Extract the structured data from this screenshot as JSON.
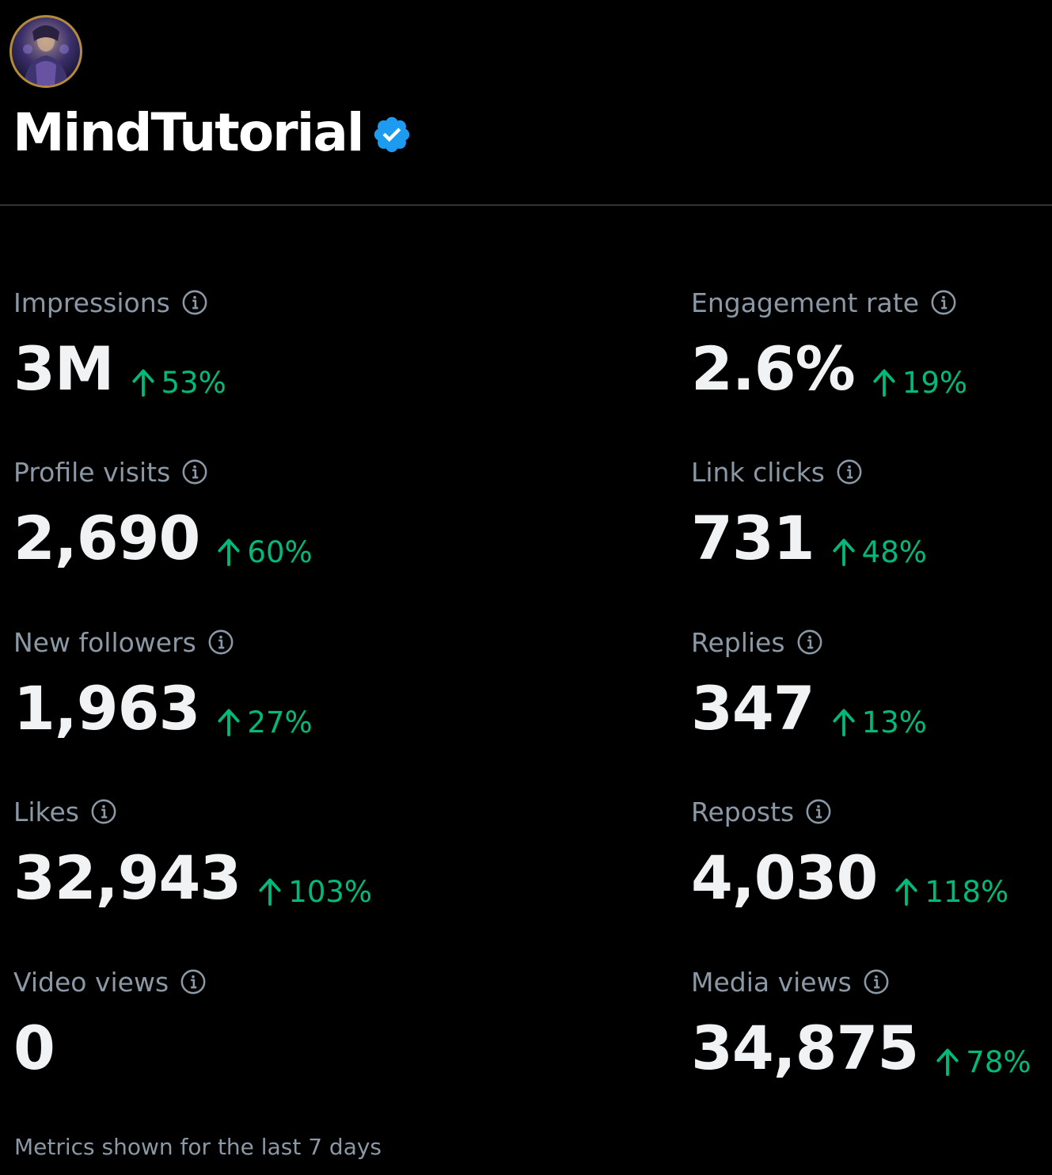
{
  "profile": {
    "display_name": "MindTutorial",
    "verified": true,
    "verified_color": "#1d9bf0"
  },
  "metrics": [
    {
      "label": "Impressions",
      "value": "3M",
      "delta": "53%",
      "direction": "up"
    },
    {
      "label": "Engagement rate",
      "value": "2.6%",
      "delta": "19%",
      "direction": "up"
    },
    {
      "label": "Profile visits",
      "value": "2,690",
      "delta": "60%",
      "direction": "up"
    },
    {
      "label": "Link clicks",
      "value": "731",
      "delta": "48%",
      "direction": "up"
    },
    {
      "label": "New followers",
      "value": "1,963",
      "delta": "27%",
      "direction": "up"
    },
    {
      "label": "Replies",
      "value": "347",
      "delta": "13%",
      "direction": "up"
    },
    {
      "label": "Likes",
      "value": "32,943",
      "delta": "103%",
      "direction": "up"
    },
    {
      "label": "Reposts",
      "value": "4,030",
      "delta": "118%",
      "direction": "up"
    },
    {
      "label": "Video views",
      "value": "0",
      "delta": "",
      "direction": "none"
    },
    {
      "label": "Media views",
      "value": "34,875",
      "delta": "78%",
      "direction": "up"
    }
  ],
  "footer": {
    "note": "Metrics shown for the last 7 days"
  },
  "colors": {
    "background": "#000000",
    "positive": "#00ba7c",
    "muted_text": "#8b98a5",
    "primary_text": "#f0f2f3"
  },
  "icons": {
    "info": "info-circle-icon",
    "up": "arrow-up-icon",
    "verified": "verified-badge-icon"
  }
}
